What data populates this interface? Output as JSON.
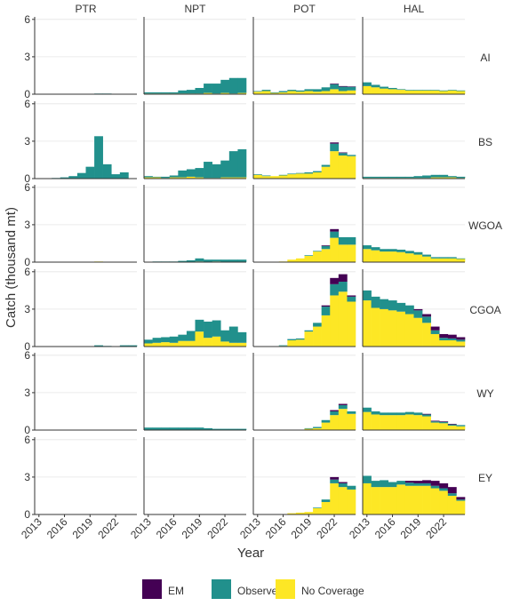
{
  "chart_data": {
    "type": "bar",
    "stacked": true,
    "facet_columns": [
      "PTR",
      "NPT",
      "POT",
      "HAL"
    ],
    "facet_rows": [
      "AI",
      "BS",
      "WGOA",
      "CGOA",
      "WY",
      "EY"
    ],
    "x": [
      2013,
      2014,
      2015,
      2016,
      2017,
      2018,
      2019,
      2020,
      2021,
      2022,
      2023,
      2024
    ],
    "x_ticks": [
      2013,
      2016,
      2019,
      2022
    ],
    "xlabel": "Year",
    "ylabel": "Catch (thousand mt)",
    "ylim": [
      0,
      6.2
    ],
    "y_ticks": [
      0,
      3,
      6
    ],
    "grid": true,
    "legend_position": "bottom",
    "series_order": [
      "EM",
      "Observer",
      "No Coverage"
    ],
    "colors": {
      "EM": "#440154",
      "Observer": "#21908C",
      "No Coverage": "#FDE725"
    },
    "panels": {
      "AI": {
        "PTR": {
          "EM": [
            0,
            0,
            0,
            0,
            0,
            0,
            0,
            0,
            0,
            0,
            0,
            0
          ],
          "Observer": [
            0,
            0,
            0,
            0,
            0,
            0,
            0,
            0.05,
            0.05,
            0,
            0,
            0
          ],
          "No Coverage": [
            0,
            0,
            0,
            0,
            0,
            0,
            0,
            0,
            0,
            0,
            0,
            0
          ]
        },
        "NPT": {
          "EM": [
            0,
            0,
            0,
            0,
            0,
            0,
            0,
            0,
            0,
            0,
            0,
            0
          ],
          "Observer": [
            0.1,
            0.1,
            0.1,
            0.1,
            0.25,
            0.3,
            0.45,
            0.75,
            0.8,
            1.05,
            1.25,
            1.2
          ],
          "No Coverage": [
            0.05,
            0.05,
            0.05,
            0.05,
            0.05,
            0.05,
            0.05,
            0.1,
            0.05,
            0.1,
            0.05,
            0.1
          ]
        },
        "POT": {
          "EM": [
            0,
            0,
            0,
            0,
            0,
            0,
            0,
            0,
            0,
            0.05,
            0.05,
            0.02
          ],
          "Observer": [
            0.05,
            0.1,
            0.05,
            0.1,
            0.1,
            0.1,
            0.15,
            0.2,
            0.3,
            0.4,
            0.35,
            0.3
          ],
          "No Coverage": [
            0.2,
            0.25,
            0.1,
            0.15,
            0.25,
            0.2,
            0.25,
            0.2,
            0.25,
            0.4,
            0.25,
            0.3
          ]
        },
        "HAL": {
          "EM": [
            0,
            0,
            0,
            0,
            0,
            0,
            0,
            0,
            0,
            0,
            0,
            0
          ],
          "Observer": [
            0.3,
            0.2,
            0.15,
            0.1,
            0.05,
            0.05,
            0.05,
            0.05,
            0.05,
            0.05,
            0.05,
            0.05
          ],
          "No Coverage": [
            0.65,
            0.55,
            0.45,
            0.4,
            0.35,
            0.3,
            0.3,
            0.3,
            0.3,
            0.25,
            0.3,
            0.25
          ]
        }
      },
      "BS": {
        "PTR": {
          "EM": [
            0,
            0,
            0,
            0,
            0,
            0,
            0,
            0,
            0,
            0,
            0,
            0
          ],
          "Observer": [
            0,
            0,
            0.05,
            0.1,
            0.2,
            0.45,
            0.95,
            3.4,
            1.15,
            0.35,
            0.5,
            0
          ],
          "No Coverage": [
            0,
            0,
            0,
            0,
            0,
            0,
            0,
            0,
            0,
            0,
            0,
            0
          ]
        },
        "NPT": {
          "EM": [
            0,
            0,
            0,
            0,
            0,
            0,
            0,
            0,
            0,
            0,
            0,
            0
          ],
          "Observer": [
            0.1,
            0.05,
            0.1,
            0.15,
            0.55,
            0.6,
            0.75,
            1.3,
            1.1,
            1.35,
            2.1,
            2.25
          ],
          "No Coverage": [
            0.1,
            0.1,
            0.05,
            0.1,
            0.1,
            0.15,
            0.1,
            0.05,
            0.05,
            0.1,
            0.1,
            0.1
          ]
        },
        "POT": {
          "EM": [
            0,
            0,
            0,
            0,
            0,
            0,
            0,
            0,
            0,
            0.1,
            0.05,
            0
          ],
          "Observer": [
            0.05,
            0.05,
            0,
            0.05,
            0.05,
            0.05,
            0.1,
            0.1,
            0.15,
            0.6,
            0.2,
            0.1
          ],
          "No Coverage": [
            0.3,
            0.2,
            0.2,
            0.25,
            0.35,
            0.4,
            0.4,
            0.5,
            0.95,
            2.2,
            1.85,
            1.8
          ]
        },
        "HAL": {
          "EM": [
            0,
            0,
            0,
            0,
            0,
            0,
            0,
            0,
            0,
            0,
            0,
            0
          ],
          "Observer": [
            0.1,
            0.1,
            0.1,
            0.1,
            0.1,
            0.1,
            0.15,
            0.2,
            0.2,
            0.2,
            0.1,
            0.1
          ],
          "No Coverage": [
            0.05,
            0.05,
            0.05,
            0.05,
            0.05,
            0.05,
            0.05,
            0.05,
            0.1,
            0.1,
            0.1,
            0.05
          ]
        }
      },
      "WGOA": {
        "PTR": {
          "EM": [
            0,
            0,
            0,
            0,
            0,
            0,
            0,
            0,
            0,
            0,
            0,
            0
          ],
          "Observer": [
            0,
            0,
            0,
            0,
            0,
            0,
            0,
            0,
            0,
            0,
            0,
            0
          ],
          "No Coverage": [
            0,
            0,
            0,
            0,
            0,
            0,
            0,
            0.05,
            0,
            0,
            0,
            0
          ]
        },
        "NPT": {
          "EM": [
            0,
            0,
            0,
            0,
            0,
            0,
            0,
            0,
            0,
            0,
            0,
            0
          ],
          "Observer": [
            0,
            0.05,
            0.05,
            0.05,
            0.1,
            0.15,
            0.25,
            0.2,
            0.15,
            0.2,
            0.2,
            0.2
          ],
          "No Coverage": [
            0,
            0,
            0,
            0,
            0,
            0,
            0.05,
            0,
            0.05,
            0,
            0,
            0
          ]
        },
        "POT": {
          "EM": [
            0,
            0,
            0,
            0,
            0,
            0,
            0,
            0,
            0.05,
            0.2,
            0,
            0
          ],
          "Observer": [
            0,
            0,
            0,
            0,
            0,
            0,
            0.05,
            0.05,
            0.25,
            0.5,
            0.6,
            0.6
          ],
          "No Coverage": [
            0,
            0,
            0,
            0.05,
            0.2,
            0.3,
            0.5,
            0.85,
            1.05,
            1.95,
            1.4,
            1.4
          ]
        },
        "HAL": {
          "EM": [
            0,
            0,
            0,
            0,
            0,
            0,
            0,
            0,
            0,
            0,
            0,
            0
          ],
          "Observer": [
            0.3,
            0.25,
            0.2,
            0.2,
            0.2,
            0.2,
            0.2,
            0.15,
            0.1,
            0.1,
            0.1,
            0.05
          ],
          "No Coverage": [
            1.05,
            0.95,
            0.85,
            0.85,
            0.8,
            0.7,
            0.6,
            0.45,
            0.3,
            0.3,
            0.3,
            0.25
          ]
        }
      },
      "CGOA": {
        "PTR": {
          "EM": [
            0,
            0,
            0,
            0,
            0,
            0,
            0,
            0,
            0,
            0,
            0,
            0
          ],
          "Observer": [
            0,
            0,
            0,
            0,
            0,
            0,
            0,
            0.1,
            0.05,
            0,
            0.1,
            0.1
          ],
          "No Coverage": [
            0,
            0,
            0,
            0,
            0,
            0,
            0,
            0,
            0,
            0,
            0,
            0
          ]
        },
        "NPT": {
          "EM": [
            0,
            0,
            0,
            0,
            0,
            0,
            0,
            0,
            0,
            0,
            0,
            0
          ],
          "Observer": [
            0.3,
            0.4,
            0.4,
            0.5,
            0.5,
            0.8,
            0.95,
            1.3,
            1.3,
            0.9,
            1.3,
            0.85
          ],
          "No Coverage": [
            0.25,
            0.3,
            0.35,
            0.3,
            0.45,
            0.45,
            1.2,
            0.7,
            0.8,
            0.4,
            0.3,
            0.3
          ]
        },
        "POT": {
          "EM": [
            0,
            0,
            0,
            0,
            0,
            0,
            0,
            0,
            0.1,
            0.5,
            0.6,
            0.1
          ],
          "Observer": [
            0,
            0,
            0,
            0.05,
            0.1,
            0.1,
            0.1,
            0.3,
            0.7,
            0.9,
            0.8,
            0.4
          ],
          "No Coverage": [
            0,
            0,
            0,
            0.05,
            0.5,
            0.55,
            1.2,
            1.6,
            2.5,
            4.1,
            4.4,
            3.6
          ]
        },
        "HAL": {
          "EM": [
            0,
            0,
            0,
            0,
            0,
            0,
            0.1,
            0.2,
            0.3,
            0.3,
            0.3,
            0.2
          ],
          "Observer": [
            0.8,
            0.9,
            0.8,
            0.8,
            0.7,
            0.7,
            0.6,
            0.5,
            0.3,
            0.2,
            0.15,
            0.15
          ],
          "No Coverage": [
            3.7,
            3.1,
            3.0,
            2.9,
            2.8,
            2.6,
            2.3,
            1.9,
            1.0,
            0.5,
            0.5,
            0.4
          ]
        }
      },
      "WY": {
        "PTR": {
          "EM": [
            0,
            0,
            0,
            0,
            0,
            0,
            0,
            0,
            0,
            0,
            0,
            0
          ],
          "Observer": [
            0,
            0,
            0,
            0,
            0,
            0,
            0,
            0,
            0,
            0,
            0,
            0
          ],
          "No Coverage": [
            0,
            0,
            0,
            0,
            0,
            0,
            0,
            0,
            0,
            0,
            0,
            0
          ]
        },
        "NPT": {
          "EM": [
            0,
            0,
            0,
            0,
            0,
            0,
            0,
            0,
            0,
            0,
            0,
            0
          ],
          "Observer": [
            0.2,
            0.2,
            0.2,
            0.2,
            0.2,
            0.2,
            0.2,
            0.15,
            0.1,
            0.1,
            0.1,
            0.1
          ],
          "No Coverage": [
            0,
            0,
            0,
            0,
            0,
            0,
            0,
            0,
            0,
            0,
            0,
            0
          ]
        },
        "POT": {
          "EM": [
            0,
            0,
            0,
            0,
            0,
            0,
            0,
            0,
            0,
            0.1,
            0.1,
            0
          ],
          "Observer": [
            0,
            0,
            0,
            0,
            0,
            0,
            0.05,
            0.1,
            0.2,
            0.3,
            0.3,
            0.2
          ],
          "No Coverage": [
            0,
            0,
            0,
            0,
            0,
            0,
            0.1,
            0.15,
            0.6,
            1.2,
            1.7,
            1.3
          ]
        },
        "HAL": {
          "EM": [
            0,
            0,
            0,
            0,
            0,
            0,
            0,
            0.05,
            0.05,
            0.05,
            0.05,
            0
          ],
          "Observer": [
            0.35,
            0.25,
            0.2,
            0.2,
            0.2,
            0.2,
            0.2,
            0.15,
            0.1,
            0.1,
            0.1,
            0.1
          ],
          "No Coverage": [
            1.45,
            1.25,
            1.2,
            1.2,
            1.2,
            1.25,
            1.2,
            1.1,
            0.6,
            0.55,
            0.35,
            0.3
          ]
        }
      },
      "EY": {
        "PTR": {
          "EM": [
            0,
            0,
            0,
            0,
            0,
            0,
            0,
            0,
            0,
            0,
            0,
            0
          ],
          "Observer": [
            0,
            0,
            0,
            0,
            0,
            0,
            0,
            0,
            0,
            0,
            0,
            0
          ],
          "No Coverage": [
            0,
            0,
            0,
            0,
            0,
            0,
            0,
            0,
            0,
            0,
            0,
            0
          ]
        },
        "NPT": {
          "EM": [
            0,
            0,
            0,
            0,
            0,
            0,
            0,
            0,
            0,
            0,
            0,
            0
          ],
          "Observer": [
            0,
            0,
            0,
            0,
            0,
            0,
            0,
            0,
            0,
            0,
            0,
            0
          ],
          "No Coverage": [
            0,
            0,
            0,
            0,
            0,
            0,
            0,
            0,
            0,
            0,
            0,
            0
          ]
        },
        "POT": {
          "EM": [
            0,
            0,
            0,
            0,
            0,
            0,
            0,
            0,
            0,
            0.2,
            0.1,
            0
          ],
          "Observer": [
            0,
            0,
            0,
            0,
            0,
            0,
            0,
            0.05,
            0.2,
            0.3,
            0.3,
            0.3
          ],
          "No Coverage": [
            0,
            0,
            0,
            0,
            0.1,
            0.15,
            0.2,
            0.5,
            1.0,
            2.5,
            2.2,
            2.0
          ]
        },
        "HAL": {
          "EM": [
            0,
            0,
            0,
            0,
            0,
            0.15,
            0.2,
            0.25,
            0.4,
            0.4,
            0.5,
            0.2
          ],
          "Observer": [
            0.6,
            0.5,
            0.55,
            0.4,
            0.3,
            0.25,
            0.2,
            0.2,
            0.2,
            0.2,
            0.2,
            0.1
          ],
          "No Coverage": [
            2.5,
            2.2,
            2.2,
            2.2,
            2.4,
            2.3,
            2.3,
            2.3,
            2.1,
            1.9,
            1.5,
            1.1
          ]
        }
      }
    }
  }
}
